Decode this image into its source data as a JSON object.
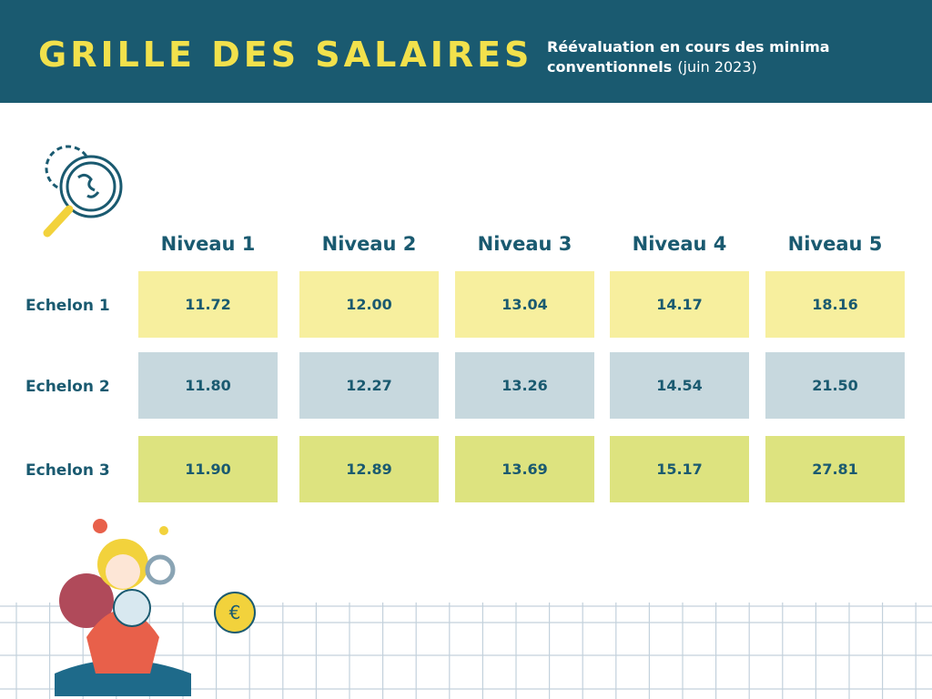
{
  "header": {
    "title": "GRILLE DES SALAIRES",
    "subtitle": "Réévaluation en cours des minima conventionnels",
    "date": "(juin 2023)"
  },
  "table": {
    "columns": [
      "Niveau 1",
      "Niveau 2",
      "Niveau 3",
      "Niveau 4",
      "Niveau 5"
    ],
    "rows": [
      {
        "label": "Echelon 1",
        "values": [
          "11.72",
          "12.00",
          "13.04",
          "14.17",
          "18.16"
        ]
      },
      {
        "label": "Echelon 2",
        "values": [
          "11.80",
          "12.27",
          "13.26",
          "14.54",
          "21.50"
        ]
      },
      {
        "label": "Echelon 3",
        "values": [
          "11.90",
          "12.89",
          "13.69",
          "15.17",
          "27.81"
        ]
      }
    ]
  }
}
